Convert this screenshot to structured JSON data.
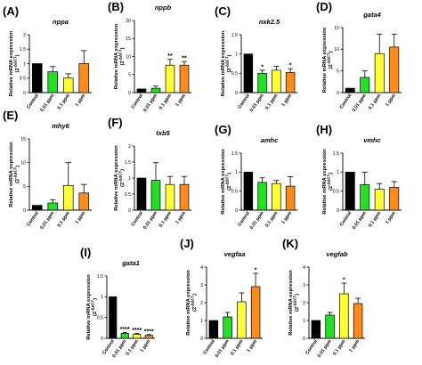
{
  "colors": {
    "Control": "#000000",
    "0.01 ppm": "#22e022",
    "0.1 ppm": "#ffff33",
    "1 ppm": "#ff8c1a"
  },
  "y_axis_label": "Relative mRNA expression",
  "y_axis_formula": "(2",
  "y_axis_superscript": "-ΔΔCT",
  "y_axis_close": ")",
  "chart_data": [
    {
      "panel": "(A)",
      "type": "bar",
      "title": "nppa",
      "categories": [
        "Control",
        "0.01 ppm",
        "0.1 ppm",
        "1 ppm"
      ],
      "values": [
        1.0,
        0.72,
        0.5,
        1.0
      ],
      "errors": [
        0,
        0.18,
        0.15,
        0.45
      ],
      "significance": [
        "",
        "",
        "",
        ""
      ],
      "ylim": [
        0,
        2.0
      ],
      "yticks": [
        0,
        0.5,
        1.0,
        1.5,
        2.0
      ]
    },
    {
      "panel": "(B)",
      "type": "bar",
      "title": "nppb",
      "categories": [
        "Control",
        "0.01 ppm",
        "0.1 ppm",
        "1 ppm"
      ],
      "values": [
        1.0,
        1.2,
        7.6,
        7.6
      ],
      "errors": [
        0,
        0.6,
        1.6,
        1.0
      ],
      "significance": [
        "",
        "",
        "**",
        "**"
      ],
      "ylim": [
        0,
        20
      ],
      "yticks": [
        0,
        5,
        10,
        15,
        20
      ]
    },
    {
      "panel": "(C)",
      "type": "bar",
      "title": "nxk2.5",
      "categories": [
        "Control",
        "0.01 ppm",
        "0.1 ppm",
        "1 ppm"
      ],
      "values": [
        1.0,
        0.5,
        0.58,
        0.52
      ],
      "errors": [
        0,
        0.08,
        0.1,
        0.1
      ],
      "significance": [
        "",
        "*",
        "",
        "*"
      ],
      "ylim": [
        0,
        1.5
      ],
      "yticks": [
        0,
        0.5,
        1.0,
        1.5
      ]
    },
    {
      "panel": "(D)",
      "type": "bar",
      "title": "gata4",
      "categories": [
        "Control",
        "0.01 ppm",
        "0.1 ppm",
        "1 ppm"
      ],
      "values": [
        1.0,
        3.5,
        9.0,
        10.5
      ],
      "errors": [
        0,
        1.5,
        4.5,
        3.0
      ],
      "significance": [
        "",
        "",
        "",
        ""
      ],
      "ylim": [
        0,
        15
      ],
      "yticks": [
        0,
        5,
        10,
        15
      ]
    },
    {
      "panel": "(E)",
      "type": "bar",
      "title": "mhy6",
      "categories": [
        "Control",
        "0.01 ppm",
        "0.1 ppm",
        "1 ppm"
      ],
      "values": [
        1.0,
        1.5,
        5.2,
        3.6
      ],
      "errors": [
        0,
        0.7,
        4.8,
        1.8
      ],
      "significance": [
        "",
        "",
        "",
        ""
      ],
      "ylim": [
        0,
        15
      ],
      "yticks": [
        0,
        5,
        10,
        15
      ]
    },
    {
      "panel": "(F)",
      "type": "bar",
      "title": "txb5",
      "categories": [
        "Control",
        "0.01 ppm",
        "0.1 ppm",
        "1 ppm"
      ],
      "values": [
        1.0,
        0.93,
        0.8,
        0.8
      ],
      "errors": [
        0,
        0.55,
        0.25,
        0.25
      ],
      "significance": [
        "",
        "",
        "",
        ""
      ],
      "ylim": [
        0,
        2.0
      ],
      "yticks": [
        0,
        0.5,
        1.0,
        1.5,
        2.0
      ]
    },
    {
      "panel": "(G)",
      "type": "bar",
      "title": "amhc",
      "categories": [
        "Control",
        "0.01 ppm",
        "0.1 ppm",
        "1 ppm"
      ],
      "values": [
        1.0,
        0.73,
        0.7,
        0.63
      ],
      "errors": [
        0,
        0.12,
        0.08,
        0.25
      ],
      "significance": [
        "",
        "",
        "",
        ""
      ],
      "ylim": [
        0,
        1.5
      ],
      "yticks": [
        0,
        0.5,
        1.0,
        1.5
      ]
    },
    {
      "panel": "(H)",
      "type": "bar",
      "title": "vmhc",
      "categories": [
        "Control",
        "0.01 ppm",
        "0.1 ppm",
        "1 ppm"
      ],
      "values": [
        1.0,
        0.67,
        0.55,
        0.6
      ],
      "errors": [
        0,
        0.33,
        0.15,
        0.15
      ],
      "significance": [
        "",
        "",
        "",
        ""
      ],
      "ylim": [
        0,
        1.5
      ],
      "yticks": [
        0,
        0.5,
        1.0,
        1.5
      ]
    },
    {
      "panel": "(I)",
      "type": "bar",
      "title": "gata1",
      "categories": [
        "Control",
        "0.01 ppm",
        "0.1 ppm",
        "1 ppm"
      ],
      "values": [
        1.0,
        0.12,
        0.1,
        0.07
      ],
      "errors": [
        0,
        0.02,
        0.02,
        0.02
      ],
      "significance": [
        "",
        "****",
        "****",
        "****"
      ],
      "ylim": [
        0,
        1.5
      ],
      "yticks": [
        0,
        0.5,
        1.0,
        1.5
      ]
    },
    {
      "panel": "(J)",
      "type": "bar",
      "title": "vegfaa",
      "categories": [
        "Control",
        "0.01 ppm",
        "0.1 ppm",
        "1 ppm"
      ],
      "values": [
        1.0,
        1.2,
        2.05,
        2.9
      ],
      "errors": [
        0,
        0.25,
        0.5,
        0.75
      ],
      "significance": [
        "",
        "",
        "",
        "*"
      ],
      "ylim": [
        0,
        4
      ],
      "yticks": [
        0,
        1,
        2,
        3,
        4
      ]
    },
    {
      "panel": "(K)",
      "type": "bar",
      "title": "vegfab",
      "categories": [
        "Control",
        "0.01 ppm",
        "0.1 ppm",
        "1 ppm"
      ],
      "values": [
        1.0,
        1.3,
        2.5,
        1.95
      ],
      "errors": [
        0,
        0.15,
        0.6,
        0.3
      ],
      "significance": [
        "",
        "",
        "*",
        ""
      ],
      "ylim": [
        0,
        4
      ],
      "yticks": [
        0,
        1,
        2,
        3,
        4
      ]
    }
  ]
}
